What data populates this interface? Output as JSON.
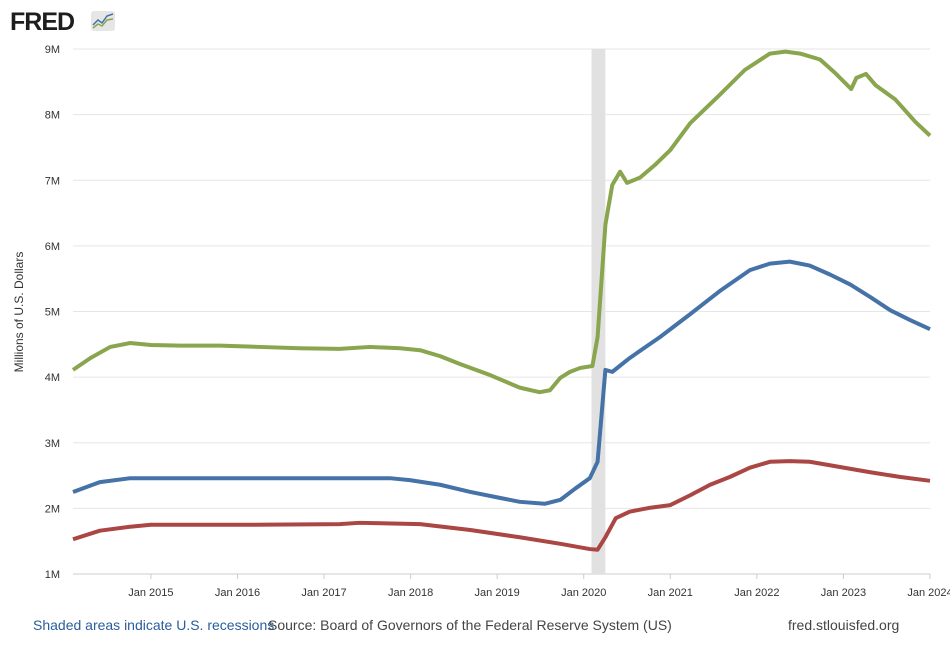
{
  "logo": {
    "text": "FRED"
  },
  "footer": {
    "recession_note": "Shaded areas indicate U.S. recessions",
    "source": "Source: Board of Governors of the Federal Reserve System (US)",
    "site": "fred.stlouisfed.org"
  },
  "chart_data": {
    "type": "line",
    "title": "",
    "xlabel": "",
    "ylabel": "Millions of U.S. Dollars",
    "xlim": [
      2014.1,
      2024.0
    ],
    "ylim": [
      1,
      9
    ],
    "grid": true,
    "x_ticks": [
      {
        "v": 2015,
        "label": "Jan 2015"
      },
      {
        "v": 2016,
        "label": "Jan 2016"
      },
      {
        "v": 2017,
        "label": "Jan 2017"
      },
      {
        "v": 2018,
        "label": "Jan 2018"
      },
      {
        "v": 2019,
        "label": "Jan 2019"
      },
      {
        "v": 2020,
        "label": "Jan 2020"
      },
      {
        "v": 2021,
        "label": "Jan 2021"
      },
      {
        "v": 2022,
        "label": "Jan 2022"
      },
      {
        "v": 2023,
        "label": "Jan 2023"
      },
      {
        "v": 2024,
        "label": "Jan 2024"
      }
    ],
    "y_ticks": [
      {
        "v": 1,
        "label": "1M"
      },
      {
        "v": 2,
        "label": "2M"
      },
      {
        "v": 3,
        "label": "3M"
      },
      {
        "v": 4,
        "label": "4M"
      },
      {
        "v": 5,
        "label": "5M"
      },
      {
        "v": 6,
        "label": "6M"
      },
      {
        "v": 7,
        "label": "7M"
      },
      {
        "v": 8,
        "label": "8M"
      },
      {
        "v": 9,
        "label": "9M"
      }
    ],
    "recessions": [
      [
        2020.09,
        2020.25
      ]
    ],
    "series": [
      {
        "name": "green-series",
        "color": "#89a54e",
        "points": [
          [
            2014.1,
            4.11
          ],
          [
            2014.3,
            4.29
          ],
          [
            2014.53,
            4.46
          ],
          [
            2014.76,
            4.52
          ],
          [
            2015.0,
            4.49
          ],
          [
            2015.34,
            4.48
          ],
          [
            2015.8,
            4.48
          ],
          [
            2016.26,
            4.46
          ],
          [
            2016.72,
            4.44
          ],
          [
            2017.18,
            4.43
          ],
          [
            2017.53,
            4.46
          ],
          [
            2017.88,
            4.44
          ],
          [
            2018.11,
            4.41
          ],
          [
            2018.34,
            4.32
          ],
          [
            2018.57,
            4.2
          ],
          [
            2018.92,
            4.03
          ],
          [
            2019.26,
            3.84
          ],
          [
            2019.49,
            3.77
          ],
          [
            2019.61,
            3.8
          ],
          [
            2019.73,
            3.99
          ],
          [
            2019.84,
            4.08
          ],
          [
            2019.96,
            4.14
          ],
          [
            2020.1,
            4.17
          ],
          [
            2020.16,
            4.61
          ],
          [
            2020.25,
            6.32
          ],
          [
            2020.33,
            6.93
          ],
          [
            2020.42,
            7.13
          ],
          [
            2020.5,
            6.96
          ],
          [
            2020.65,
            7.04
          ],
          [
            2020.82,
            7.23
          ],
          [
            2021.0,
            7.46
          ],
          [
            2021.23,
            7.87
          ],
          [
            2021.57,
            8.3
          ],
          [
            2021.86,
            8.68
          ],
          [
            2022.15,
            8.93
          ],
          [
            2022.33,
            8.96
          ],
          [
            2022.5,
            8.93
          ],
          [
            2022.73,
            8.84
          ],
          [
            2022.9,
            8.64
          ],
          [
            2023.09,
            8.39
          ],
          [
            2023.15,
            8.56
          ],
          [
            2023.26,
            8.62
          ],
          [
            2023.37,
            8.45
          ],
          [
            2023.6,
            8.23
          ],
          [
            2023.83,
            7.89
          ],
          [
            2024.0,
            7.68
          ]
        ]
      },
      {
        "name": "blue-series",
        "color": "#4572a7",
        "points": [
          [
            2014.1,
            2.25
          ],
          [
            2014.41,
            2.4
          ],
          [
            2014.76,
            2.46
          ],
          [
            2015.0,
            2.46
          ],
          [
            2016.14,
            2.46
          ],
          [
            2017.76,
            2.46
          ],
          [
            2017.99,
            2.43
          ],
          [
            2018.34,
            2.36
          ],
          [
            2018.69,
            2.25
          ],
          [
            2019.03,
            2.16
          ],
          [
            2019.26,
            2.1
          ],
          [
            2019.55,
            2.07
          ],
          [
            2019.73,
            2.13
          ],
          [
            2019.9,
            2.3
          ],
          [
            2020.07,
            2.46
          ],
          [
            2020.16,
            2.71
          ],
          [
            2020.25,
            4.11
          ],
          [
            2020.33,
            4.08
          ],
          [
            2020.53,
            4.29
          ],
          [
            2020.88,
            4.61
          ],
          [
            2021.23,
            4.96
          ],
          [
            2021.57,
            5.31
          ],
          [
            2021.92,
            5.63
          ],
          [
            2022.15,
            5.73
          ],
          [
            2022.38,
            5.76
          ],
          [
            2022.61,
            5.7
          ],
          [
            2022.85,
            5.56
          ],
          [
            2023.08,
            5.41
          ],
          [
            2023.31,
            5.22
          ],
          [
            2023.54,
            5.02
          ],
          [
            2023.77,
            4.87
          ],
          [
            2024.0,
            4.73
          ]
        ]
      },
      {
        "name": "red-series",
        "color": "#aa4643",
        "points": [
          [
            2014.1,
            1.53
          ],
          [
            2014.41,
            1.66
          ],
          [
            2014.76,
            1.72
          ],
          [
            2015.0,
            1.75
          ],
          [
            2016.14,
            1.75
          ],
          [
            2017.18,
            1.76
          ],
          [
            2017.41,
            1.78
          ],
          [
            2018.11,
            1.76
          ],
          [
            2018.69,
            1.67
          ],
          [
            2019.26,
            1.56
          ],
          [
            2019.73,
            1.46
          ],
          [
            2020.07,
            1.38
          ],
          [
            2020.16,
            1.37
          ],
          [
            2020.25,
            1.56
          ],
          [
            2020.37,
            1.85
          ],
          [
            2020.53,
            1.95
          ],
          [
            2020.77,
            2.01
          ],
          [
            2021.0,
            2.05
          ],
          [
            2021.23,
            2.2
          ],
          [
            2021.46,
            2.36
          ],
          [
            2021.69,
            2.48
          ],
          [
            2021.92,
            2.62
          ],
          [
            2022.15,
            2.71
          ],
          [
            2022.38,
            2.72
          ],
          [
            2022.61,
            2.71
          ],
          [
            2022.96,
            2.63
          ],
          [
            2023.31,
            2.55
          ],
          [
            2023.65,
            2.48
          ],
          [
            2024.0,
            2.42
          ]
        ]
      }
    ]
  }
}
